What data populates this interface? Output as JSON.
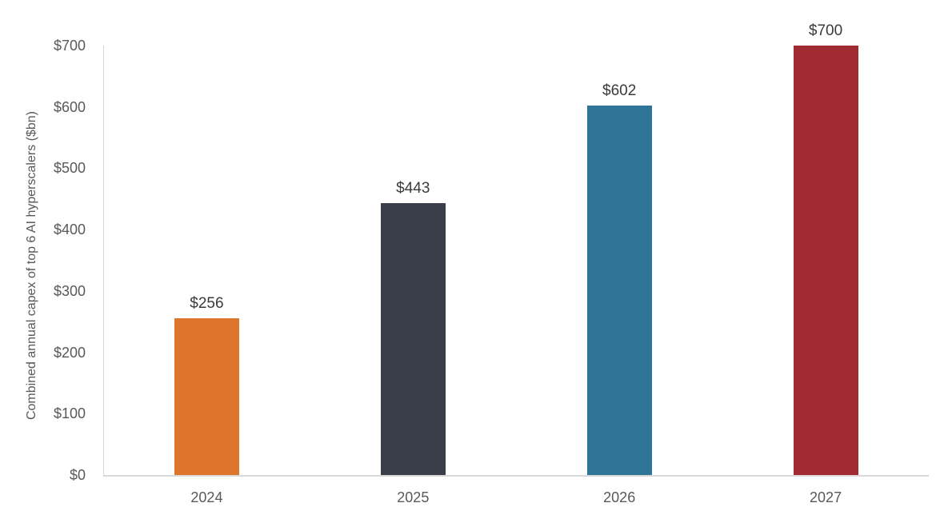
{
  "chart_data": {
    "type": "bar",
    "categories": [
      "2024",
      "2025",
      "2026",
      "2027"
    ],
    "values": [
      256,
      443,
      602,
      700
    ],
    "data_labels": [
      "$256",
      "$443",
      "$602",
      "$700"
    ],
    "bar_colors": [
      "#DD762C",
      "#3A3E4A",
      "#2F7499",
      "#A12B32"
    ],
    "title": "",
    "xlabel": "",
    "ylabel": "Combined annual capex of top 6 AI hyperscalers ($bn)",
    "ylim": [
      0,
      700
    ],
    "ytick_step": 100,
    "ytick_labels": [
      "$0",
      "$100",
      "$200",
      "$300",
      "$400",
      "$500",
      "$600",
      "$700"
    ],
    "grid": false,
    "legend": "none",
    "currency_prefix": "$"
  },
  "colors": {
    "background": "#FFFFFF",
    "axis_line": "#D9D9D9",
    "tick_text": "#595959",
    "value_label_text": "#3A3A3A"
  }
}
